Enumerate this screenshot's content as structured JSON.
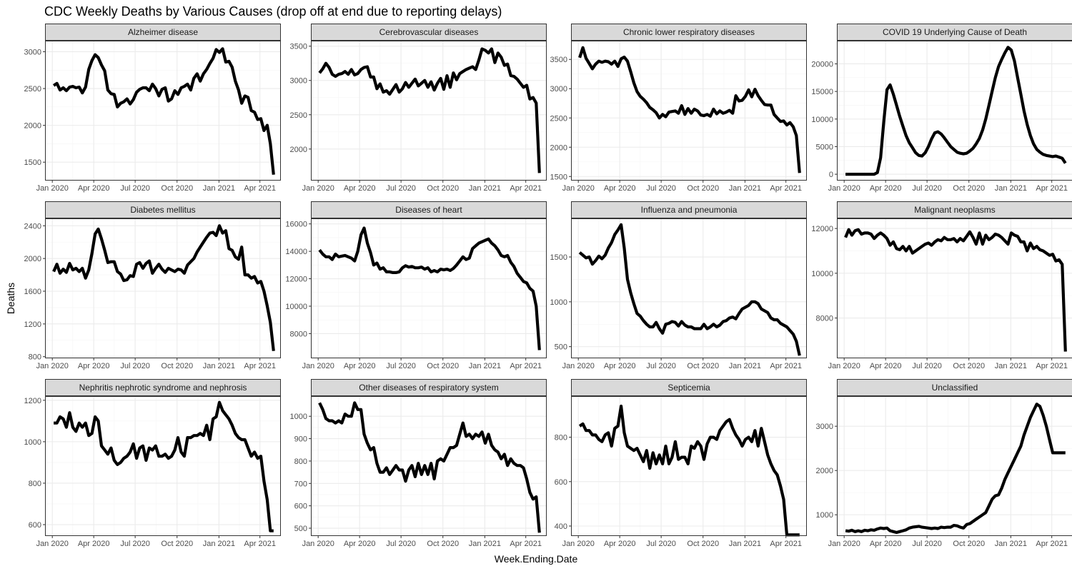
{
  "title": "CDC Weekly Deaths by Various Causes (drop off at end due to reporting delays)",
  "xlabel": "Week.Ending.Date",
  "ylabel": "Deaths",
  "colors": {
    "line": "#000000",
    "strip_bg": "#d9d9d9",
    "border": "#333333",
    "grid_major": "#ebebeb",
    "grid_minor": "#f5f5f5"
  },
  "x_ticks": [
    "Jan 2020",
    "Apr 2020",
    "Jul 2020",
    "Oct 2020",
    "Jan 2021",
    "Apr 2021"
  ],
  "chart_data": {
    "type": "line",
    "layout": "facet-grid-3x4",
    "grid": true,
    "x_unit": "week ending date",
    "x_range": [
      "2019-12-16",
      "2021-05-17"
    ],
    "x": [
      "2020-01-04",
      "2020-01-11",
      "2020-01-18",
      "2020-01-25",
      "2020-02-01",
      "2020-02-08",
      "2020-02-15",
      "2020-02-22",
      "2020-02-29",
      "2020-03-07",
      "2020-03-14",
      "2020-03-21",
      "2020-03-28",
      "2020-04-04",
      "2020-04-11",
      "2020-04-18",
      "2020-04-25",
      "2020-05-02",
      "2020-05-09",
      "2020-05-16",
      "2020-05-23",
      "2020-05-30",
      "2020-06-06",
      "2020-06-13",
      "2020-06-20",
      "2020-06-27",
      "2020-07-04",
      "2020-07-11",
      "2020-07-18",
      "2020-07-25",
      "2020-08-01",
      "2020-08-08",
      "2020-08-15",
      "2020-08-22",
      "2020-08-29",
      "2020-09-05",
      "2020-09-12",
      "2020-09-19",
      "2020-09-26",
      "2020-10-03",
      "2020-10-10",
      "2020-10-17",
      "2020-10-24",
      "2020-10-31",
      "2020-11-07",
      "2020-11-14",
      "2020-11-21",
      "2020-11-28",
      "2020-12-05",
      "2020-12-12",
      "2020-12-19",
      "2020-12-26",
      "2021-01-02",
      "2021-01-09",
      "2021-01-16",
      "2021-01-23",
      "2021-01-30",
      "2021-02-06",
      "2021-02-13",
      "2021-02-20",
      "2021-02-27",
      "2021-03-06",
      "2021-03-13",
      "2021-03-20",
      "2021-03-27",
      "2021-04-03",
      "2021-04-10",
      "2021-04-17",
      "2021-04-24",
      "2021-05-01"
    ],
    "panels": [
      {
        "title": "Alzheimer disease",
        "ylim": [
          1250,
          3150
        ],
        "yticks": [
          1500,
          2000,
          2500,
          3000
        ],
        "values": [
          2540,
          2570,
          2480,
          2510,
          2470,
          2520,
          2530,
          2510,
          2520,
          2440,
          2520,
          2760,
          2880,
          2960,
          2920,
          2820,
          2740,
          2480,
          2430,
          2420,
          2250,
          2300,
          2320,
          2360,
          2290,
          2350,
          2450,
          2490,
          2510,
          2510,
          2470,
          2560,
          2500,
          2400,
          2490,
          2510,
          2330,
          2360,
          2470,
          2420,
          2510,
          2530,
          2560,
          2480,
          2640,
          2700,
          2600,
          2700,
          2760,
          2840,
          2910,
          3030,
          2990,
          3040,
          2860,
          2870,
          2790,
          2600,
          2480,
          2300,
          2400,
          2380,
          2200,
          2180,
          2080,
          2090,
          1930,
          2000,
          1750,
          1330
        ]
      },
      {
        "title": "Cerebrovascular diseases",
        "ylim": [
          1540,
          3580
        ],
        "yticks": [
          2000,
          2500,
          3000,
          3500
        ],
        "values": [
          3110,
          3170,
          3250,
          3190,
          3090,
          3060,
          3090,
          3100,
          3130,
          3090,
          3160,
          3080,
          3100,
          3160,
          3190,
          3200,
          3050,
          3050,
          2880,
          2950,
          2830,
          2850,
          2800,
          2870,
          2940,
          2830,
          2880,
          2970,
          2900,
          2960,
          3020,
          2920,
          2960,
          3000,
          2900,
          2980,
          2860,
          2960,
          3030,
          2870,
          3070,
          2900,
          3110,
          3010,
          3100,
          3130,
          3160,
          3180,
          3200,
          3160,
          3300,
          3460,
          3440,
          3400,
          3460,
          3260,
          3400,
          3340,
          3220,
          3240,
          3070,
          3060,
          3020,
          2960,
          2900,
          2930,
          2730,
          2750,
          2670,
          1650
        ]
      },
      {
        "title": "Chronic lower respiratory diseases",
        "ylim": [
          1430,
          3820
        ],
        "yticks": [
          1500,
          2000,
          2500,
          3000,
          3500
        ],
        "values": [
          3530,
          3700,
          3520,
          3430,
          3340,
          3420,
          3470,
          3450,
          3470,
          3460,
          3420,
          3470,
          3380,
          3510,
          3540,
          3470,
          3290,
          3100,
          2950,
          2870,
          2820,
          2760,
          2680,
          2640,
          2590,
          2500,
          2560,
          2520,
          2600,
          2610,
          2620,
          2580,
          2710,
          2560,
          2660,
          2580,
          2650,
          2620,
          2550,
          2540,
          2560,
          2530,
          2650,
          2570,
          2620,
          2580,
          2600,
          2630,
          2580,
          2880,
          2790,
          2800,
          2870,
          2980,
          2860,
          2990,
          2880,
          2800,
          2730,
          2720,
          2720,
          2560,
          2500,
          2440,
          2450,
          2380,
          2420,
          2350,
          2200,
          1560
        ]
      },
      {
        "title": "COVID 19 Underlying Cause of Death",
        "ylim": [
          -1150,
          24200
        ],
        "yticks": [
          0,
          5000,
          10000,
          15000,
          20000
        ],
        "values": [
          0,
          0,
          0,
          0,
          0,
          0,
          0,
          0,
          0,
          0,
          300,
          3000,
          9500,
          15300,
          16200,
          14500,
          12500,
          10500,
          8700,
          7000,
          5700,
          4800,
          3900,
          3400,
          3300,
          3900,
          5000,
          6400,
          7500,
          7700,
          7300,
          6600,
          5800,
          5000,
          4500,
          4000,
          3800,
          3700,
          3800,
          4200,
          4700,
          5500,
          6500,
          8000,
          10000,
          12500,
          15000,
          17500,
          19500,
          20800,
          22000,
          23000,
          22500,
          20500,
          17500,
          14500,
          11500,
          9000,
          7000,
          5500,
          4500,
          4000,
          3600,
          3400,
          3300,
          3200,
          3300,
          3100,
          2900,
          2000
        ]
      },
      {
        "title": "Diabetes mellitus",
        "ylim": [
          780,
          2490
        ],
        "yticks": [
          800,
          1200,
          1600,
          2000,
          2400
        ],
        "values": [
          1840,
          1930,
          1820,
          1870,
          1830,
          1940,
          1860,
          1880,
          1840,
          1880,
          1760,
          1860,
          2060,
          2300,
          2360,
          2240,
          2100,
          1950,
          1960,
          1960,
          1840,
          1810,
          1730,
          1740,
          1790,
          1780,
          1930,
          1950,
          1880,
          1940,
          1970,
          1820,
          1880,
          1930,
          1870,
          1830,
          1880,
          1860,
          1840,
          1870,
          1860,
          1820,
          1920,
          1960,
          2000,
          2080,
          2140,
          2200,
          2260,
          2310,
          2320,
          2280,
          2400,
          2310,
          2340,
          2120,
          2100,
          2020,
          1990,
          2140,
          1800,
          1800,
          1760,
          1780,
          1700,
          1720,
          1600,
          1420,
          1220,
          870
        ]
      },
      {
        "title": "Diseases of heart",
        "ylim": [
          6200,
          16400
        ],
        "yticks": [
          8000,
          10000,
          12000,
          14000,
          16000
        ],
        "values": [
          14100,
          13800,
          13600,
          13600,
          13400,
          13800,
          13600,
          13650,
          13700,
          13600,
          13500,
          13300,
          14000,
          15200,
          15700,
          14600,
          13900,
          13000,
          13150,
          12700,
          12800,
          12500,
          12500,
          12450,
          12450,
          12500,
          12800,
          12950,
          12850,
          12900,
          12800,
          12800,
          12850,
          12700,
          12800,
          12500,
          12600,
          12500,
          12700,
          12650,
          12700,
          12600,
          12750,
          13000,
          13300,
          13600,
          13400,
          13500,
          14200,
          14400,
          14600,
          14700,
          14800,
          14900,
          14600,
          14400,
          14100,
          13700,
          13600,
          13700,
          13200,
          12900,
          12400,
          12100,
          11800,
          11700,
          11300,
          11100,
          10000,
          6800
        ]
      },
      {
        "title": "Influenza and pneumonia",
        "ylim": [
          370,
          1930
        ],
        "yticks": [
          500,
          1000,
          1500
        ],
        "values": [
          1550,
          1520,
          1490,
          1500,
          1420,
          1460,
          1510,
          1480,
          1520,
          1600,
          1660,
          1750,
          1800,
          1860,
          1600,
          1250,
          1100,
          980,
          870,
          840,
          790,
          750,
          720,
          720,
          770,
          700,
          650,
          750,
          760,
          780,
          770,
          730,
          780,
          740,
          720,
          720,
          700,
          700,
          700,
          750,
          700,
          720,
          750,
          720,
          740,
          780,
          790,
          820,
          830,
          810,
          870,
          920,
          940,
          960,
          1000,
          1000,
          980,
          920,
          900,
          880,
          820,
          800,
          800,
          760,
          740,
          720,
          680,
          640,
          560,
          400
        ]
      },
      {
        "title": "Malignant neoplasms",
        "ylim": [
          6200,
          12450
        ],
        "yticks": [
          8000,
          10000,
          12000
        ],
        "values": [
          11600,
          11950,
          11700,
          11900,
          11950,
          11750,
          11800,
          11800,
          11750,
          11550,
          11700,
          11800,
          11700,
          11550,
          11250,
          11400,
          11100,
          11050,
          11200,
          11000,
          11200,
          10900,
          11000,
          11100,
          11200,
          11300,
          11350,
          11250,
          11400,
          11500,
          11450,
          11600,
          11500,
          11500,
          11550,
          11400,
          11550,
          11450,
          11650,
          11850,
          11600,
          11300,
          11800,
          11300,
          11700,
          11500,
          11600,
          11750,
          11700,
          11600,
          11450,
          11300,
          11800,
          11700,
          11650,
          11400,
          11400,
          11000,
          11350,
          11100,
          11200,
          11050,
          11000,
          10900,
          10800,
          10850,
          10550,
          10600,
          10400,
          6500
        ]
      },
      {
        "title": "Nephritis nephrotic syndrome and nephrosis",
        "ylim": [
          545,
          1220
        ],
        "yticks": [
          600,
          800,
          1000,
          1200
        ],
        "values": [
          1090,
          1090,
          1120,
          1110,
          1070,
          1140,
          1070,
          1050,
          1090,
          1070,
          1090,
          1030,
          1040,
          1120,
          1100,
          980,
          960,
          940,
          970,
          910,
          890,
          900,
          920,
          930,
          950,
          990,
          920,
          970,
          980,
          910,
          970,
          960,
          980,
          930,
          930,
          940,
          920,
          930,
          960,
          1020,
          950,
          930,
          1020,
          1020,
          1030,
          1030,
          1040,
          1030,
          1080,
          1010,
          1110,
          1120,
          1190,
          1150,
          1130,
          1110,
          1080,
          1040,
          1020,
          1010,
          1010,
          970,
          930,
          950,
          920,
          930,
          810,
          720,
          570,
          570
        ]
      },
      {
        "title": "Other diseases of respiratory system",
        "ylim": [
          465,
          1090
        ],
        "yticks": [
          500,
          600,
          700,
          800,
          900,
          1000
        ],
        "values": [
          1060,
          1030,
          990,
          980,
          980,
          970,
          980,
          970,
          1010,
          1000,
          1000,
          1060,
          1030,
          1030,
          920,
          880,
          850,
          860,
          790,
          750,
          750,
          770,
          740,
          760,
          780,
          760,
          760,
          710,
          760,
          780,
          730,
          790,
          740,
          780,
          740,
          790,
          720,
          800,
          810,
          800,
          830,
          860,
          860,
          870,
          920,
          970,
          910,
          920,
          900,
          920,
          910,
          930,
          880,
          920,
          870,
          850,
          840,
          810,
          830,
          780,
          810,
          790,
          780,
          780,
          770,
          720,
          660,
          630,
          640,
          480
        ]
      },
      {
        "title": "Septicemia",
        "ylim": [
          355,
          985
        ],
        "yticks": [
          400,
          600,
          800
        ],
        "values": [
          850,
          860,
          830,
          830,
          810,
          810,
          790,
          780,
          810,
          820,
          760,
          840,
          850,
          940,
          820,
          760,
          750,
          740,
          750,
          720,
          690,
          740,
          660,
          730,
          680,
          720,
          680,
          760,
          680,
          710,
          780,
          700,
          710,
          710,
          680,
          760,
          750,
          780,
          760,
          700,
          770,
          800,
          800,
          790,
          830,
          850,
          870,
          880,
          840,
          810,
          790,
          760,
          790,
          800,
          780,
          830,
          760,
          840,
          780,
          720,
          680,
          650,
          630,
          580,
          520,
          360,
          360,
          360,
          360,
          360
        ]
      },
      {
        "title": "Unclassified",
        "ylim": [
          520,
          3680
        ],
        "yticks": [
          1000,
          2000,
          3000
        ],
        "values": [
          640,
          630,
          650,
          620,
          640,
          620,
          650,
          640,
          660,
          650,
          680,
          700,
          690,
          700,
          640,
          620,
          600,
          620,
          640,
          660,
          700,
          720,
          730,
          740,
          720,
          710,
          700,
          690,
          700,
          690,
          720,
          710,
          720,
          720,
          760,
          750,
          720,
          700,
          780,
          800,
          850,
          900,
          950,
          1000,
          1050,
          1200,
          1350,
          1430,
          1450,
          1600,
          1800,
          1950,
          2100,
          2250,
          2400,
          2550,
          2800,
          3000,
          3200,
          3350,
          3500,
          3450,
          3250,
          3000,
          2700,
          2400,
          2400,
          2400,
          2400,
          2400
        ]
      }
    ]
  }
}
